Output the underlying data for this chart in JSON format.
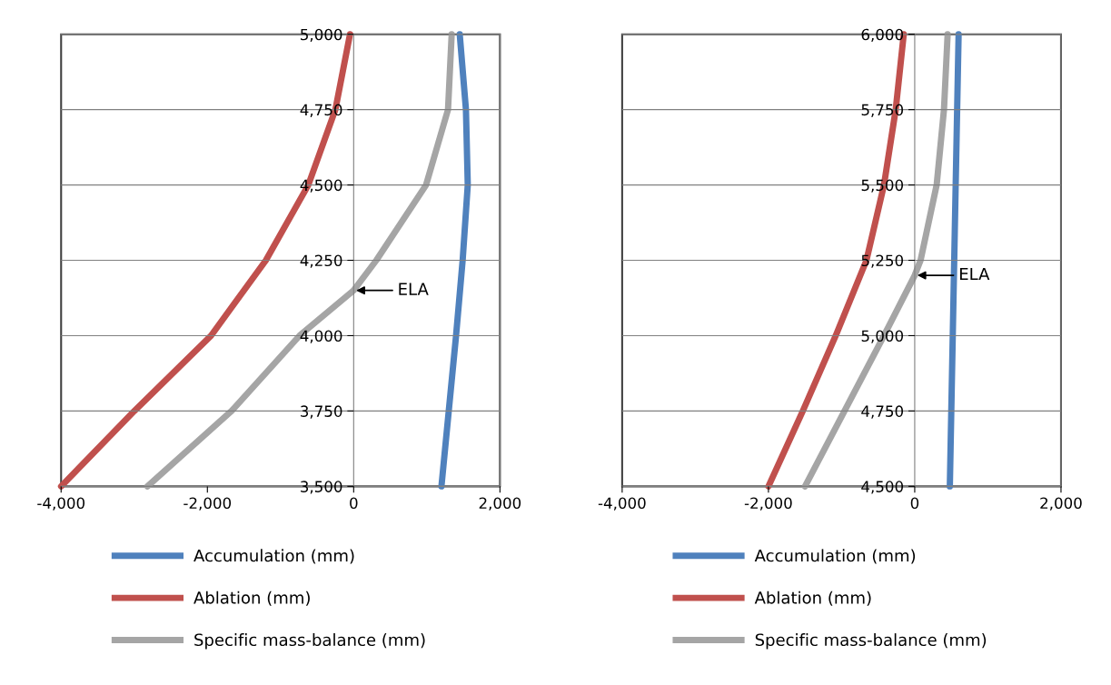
{
  "chart_data": [
    {
      "type": "line",
      "xlim": [
        -4000,
        2000
      ],
      "ylim": [
        3500,
        5000
      ],
      "xticks": [
        {
          "value": -4000,
          "label": "-4,000"
        },
        {
          "value": -2000,
          "label": "-2,000"
        },
        0,
        {
          "value": 2000,
          "label": "2,000"
        }
      ],
      "yticks": [
        {
          "value": 3500,
          "label": "3,500"
        },
        {
          "value": 3750,
          "label": "3,750"
        },
        {
          "value": 4000,
          "label": "4,000"
        },
        {
          "value": 4250,
          "label": "4,250"
        },
        {
          "value": 4500,
          "label": "4,500"
        },
        {
          "value": 4750,
          "label": "4,750"
        },
        {
          "value": 5000,
          "label": "5,000"
        }
      ],
      "grid": "y",
      "legend": "bottom",
      "marker": "none",
      "line_style": "solid",
      "series": [
        {
          "name": "Accumulation (mm)",
          "color": "#4f81bd",
          "x": [
            1200,
            1300,
            1400,
            1490,
            1560,
            1535,
            1450
          ],
          "values": [
            3500,
            3750,
            4000,
            4250,
            4500,
            4750,
            5000
          ]
        },
        {
          "name": "Ablation (mm)",
          "color": "#c0504d",
          "x": [
            -4000,
            -3000,
            -1950,
            -1200,
            -620,
            -250,
            -50
          ],
          "values": [
            3500,
            3750,
            4000,
            4250,
            4500,
            4750,
            5000
          ]
        },
        {
          "name": "Specific mass-balance (mm)",
          "color": "#a5a5a5",
          "x": [
            -2820,
            -1670,
            -740,
            0,
            310,
            990,
            1290,
            1340
          ],
          "values": [
            3500,
            3750,
            4000,
            4150,
            4250,
            4500,
            4750,
            5000
          ]
        }
      ],
      "annotations": [
        {
          "text": "ELA",
          "x": 0,
          "y": 4150
        }
      ]
    },
    {
      "type": "line",
      "xlim": [
        -4000,
        2000
      ],
      "ylim": [
        4500,
        6000
      ],
      "xticks": [
        {
          "value": -4000,
          "label": "-4,000"
        },
        {
          "value": -2000,
          "label": "-2,000"
        },
        0,
        {
          "value": 2000,
          "label": "2,000"
        }
      ],
      "yticks": [
        {
          "value": 4500,
          "label": "4,500"
        },
        {
          "value": 4750,
          "label": "4,750"
        },
        {
          "value": 5000,
          "label": "5,000"
        },
        {
          "value": 5250,
          "label": "5,250"
        },
        {
          "value": 5500,
          "label": "5,500"
        },
        {
          "value": 5750,
          "label": "5,750"
        },
        {
          "value": 6000,
          "label": "6,000"
        }
      ],
      "grid": "y",
      "legend": "bottom",
      "marker": "none",
      "line_style": "solid",
      "series": [
        {
          "name": "Accumulation (mm)",
          "color": "#4f81bd",
          "x": [
            480,
            600
          ],
          "values": [
            4500,
            6000
          ]
        },
        {
          "name": "Ablation (mm)",
          "color": "#c0504d",
          "x": [
            -2000,
            -1530,
            -1080,
            -660,
            -420,
            -260,
            -150
          ],
          "values": [
            4500,
            4750,
            5000,
            5250,
            5500,
            5750,
            6000
          ]
        },
        {
          "name": "Specific mass-balance (mm)",
          "color": "#a5a5a5",
          "x": [
            -1500,
            -960,
            -420,
            0,
            80,
            300,
            400,
            450
          ],
          "values": [
            4500,
            4750,
            5000,
            5200,
            5250,
            5500,
            5750,
            6000
          ]
        }
      ],
      "annotations": [
        {
          "text": "ELA",
          "x": 0,
          "y": 5200
        }
      ]
    }
  ]
}
